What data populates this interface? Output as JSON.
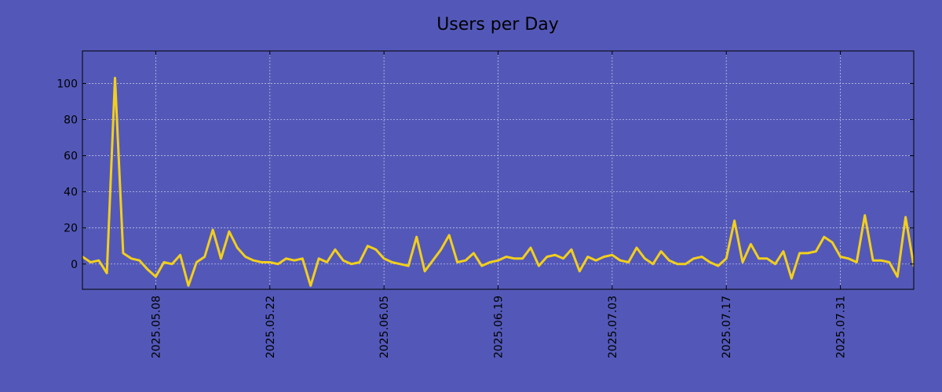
{
  "chart_data": {
    "type": "line",
    "title": "Users per Day",
    "xlabel": "",
    "ylabel": "",
    "x_start": "2025-04-29",
    "x_tick_labels": [
      "2025.05.08",
      "2025.05.22",
      "2025.06.05",
      "2025.06.19",
      "2025.07.03",
      "2025.07.17",
      "2025.07.31"
    ],
    "x_tick_day_offsets": [
      9,
      23,
      37,
      51,
      65,
      79,
      93
    ],
    "y_ticks": [
      0,
      20,
      40,
      60,
      80,
      100
    ],
    "y_tick_labels": [
      "0",
      "20",
      "40",
      "60",
      "80",
      "100"
    ],
    "ylim": [
      -14,
      118
    ],
    "xlim_days": [
      0,
      102
    ],
    "grid": true,
    "series": [
      {
        "name": "Users",
        "color": "#f2cf1c",
        "values": [
          4,
          1,
          2,
          -5,
          103,
          6,
          3,
          2,
          -3,
          -7,
          1,
          0,
          5,
          -12,
          1,
          4,
          19,
          3,
          18,
          9,
          4,
          2,
          1,
          1,
          0,
          3,
          2,
          3,
          -12,
          3,
          1,
          8,
          2,
          0,
          1,
          10,
          8,
          3,
          1,
          0,
          -1,
          15,
          -4,
          2,
          8,
          16,
          1,
          2,
          6,
          -1,
          1,
          2,
          4,
          3,
          3,
          9,
          -1,
          4,
          5,
          3,
          8,
          -4,
          4,
          2,
          4,
          5,
          2,
          1,
          9,
          3,
          0,
          7,
          2,
          0,
          0,
          3,
          4,
          1,
          -1,
          3,
          24,
          1,
          11,
          3,
          3,
          0,
          7,
          -8,
          6,
          6,
          7,
          15,
          12,
          4,
          3,
          1,
          27,
          2,
          2,
          1,
          -7,
          26,
          -1
        ]
      }
    ]
  }
}
